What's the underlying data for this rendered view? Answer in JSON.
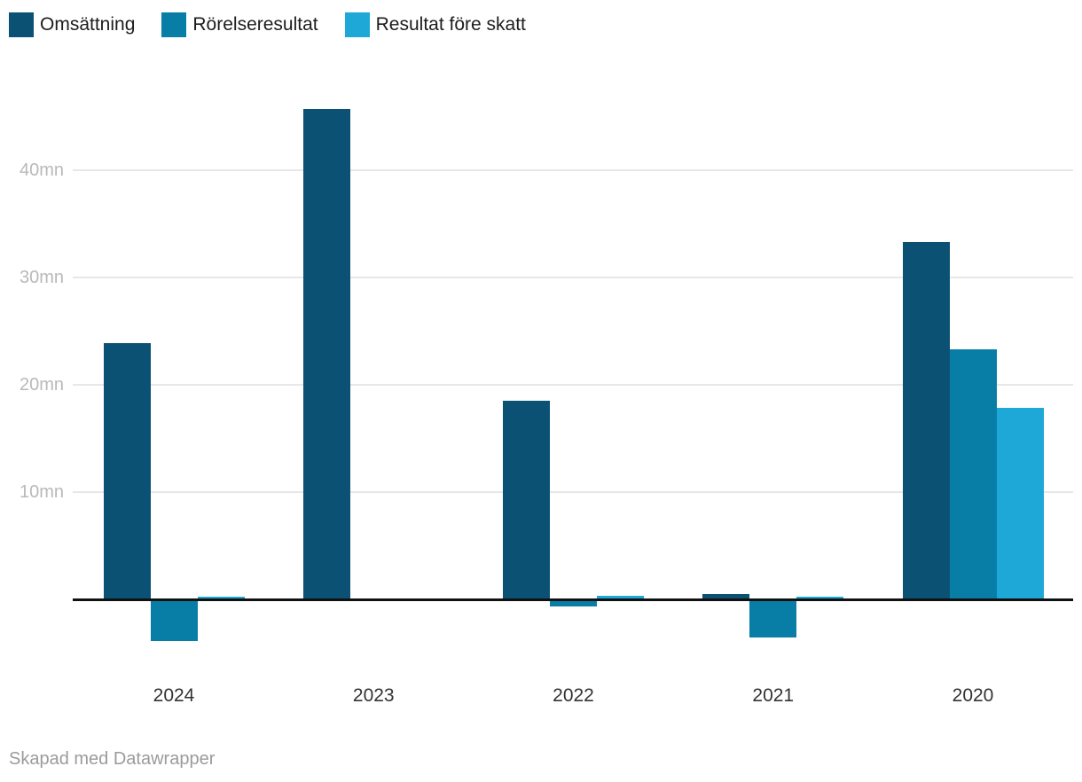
{
  "legend": {
    "items": [
      {
        "label": "Omsättning",
        "color": "#0b5174"
      },
      {
        "label": "Rörelseresultat",
        "color": "#087ea7"
      },
      {
        "label": "Resultat före skatt",
        "color": "#1ea8d7"
      }
    ]
  },
  "chart_data": {
    "type": "bar",
    "title": "",
    "categories": [
      "2024",
      "2023",
      "2022",
      "2021",
      "2020"
    ],
    "series": [
      {
        "name": "Omsättning",
        "color": "#0b5174",
        "values": [
          23.9,
          45.7,
          18.5,
          0.5,
          33.3
        ]
      },
      {
        "name": "Rörelseresultat",
        "color": "#087ea7",
        "values": [
          -3.8,
          0,
          -0.6,
          -3.5,
          23.3
        ]
      },
      {
        "name": "Resultat före skatt",
        "color": "#1ea8d7",
        "values": [
          0.3,
          0,
          0.4,
          0.3,
          17.9
        ]
      }
    ],
    "unit": "mn",
    "xlabel": "",
    "ylabel": "",
    "y_axis": {
      "ticks": [
        {
          "label": "10mn",
          "value": 10
        },
        {
          "label": "20mn",
          "value": 20
        },
        {
          "label": "30mn",
          "value": 30
        },
        {
          "label": "40mn",
          "value": 40
        }
      ],
      "range": [
        -5,
        47
      ],
      "gridlines": true
    },
    "legend_position": "top-left"
  },
  "footer": {
    "credit": "Skapad med Datawrapper"
  },
  "colors": {
    "background": "#ffffff",
    "grid": "#e7e7e7",
    "axis": "#111111",
    "y_label": "#b9b9b9",
    "x_label": "#333333",
    "legend_text": "#1d1d1d",
    "footer_text": "#9b9b9b"
  }
}
